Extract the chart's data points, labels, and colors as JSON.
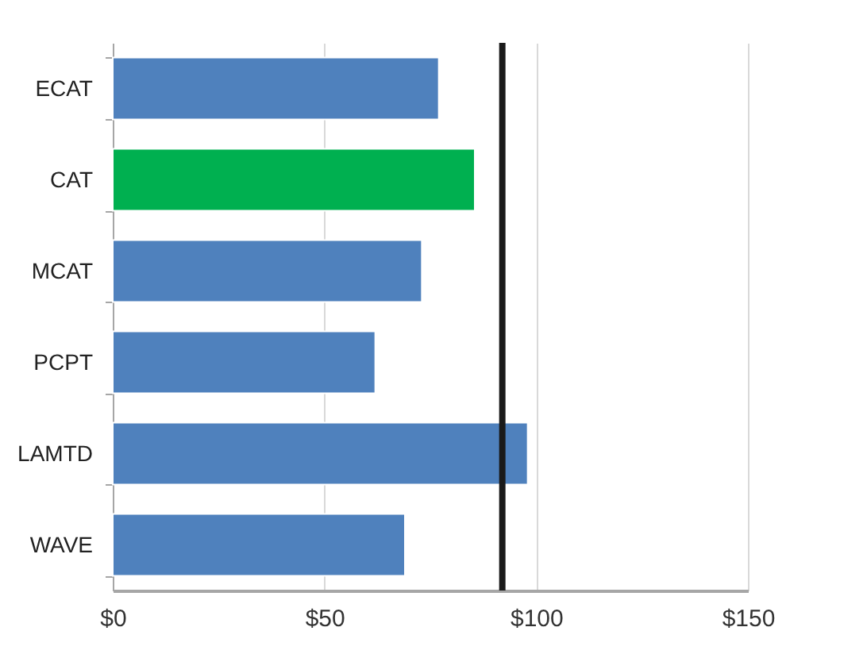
{
  "chart_data": {
    "type": "bar",
    "orientation": "horizontal",
    "categories": [
      "ECAT",
      "CAT",
      "MCAT",
      "PCPT",
      "LAMTD",
      "WAVE"
    ],
    "values": [
      77,
      85.5,
      73,
      62,
      98,
      69
    ],
    "colors": [
      "#4f81bd",
      "#00b050",
      "#4f81bd",
      "#4f81bd",
      "#4f81bd",
      "#4f81bd"
    ],
    "xlim": [
      0,
      150
    ],
    "xticks": [
      {
        "value": 0,
        "label": "$0"
      },
      {
        "value": 50,
        "label": "$50"
      },
      {
        "value": 100,
        "label": "$100"
      },
      {
        "value": 150,
        "label": "$150"
      }
    ],
    "grid": "x",
    "ref_lines": [
      {
        "axis": "x",
        "value": 92,
        "color": "#1a1a1a"
      }
    ]
  }
}
